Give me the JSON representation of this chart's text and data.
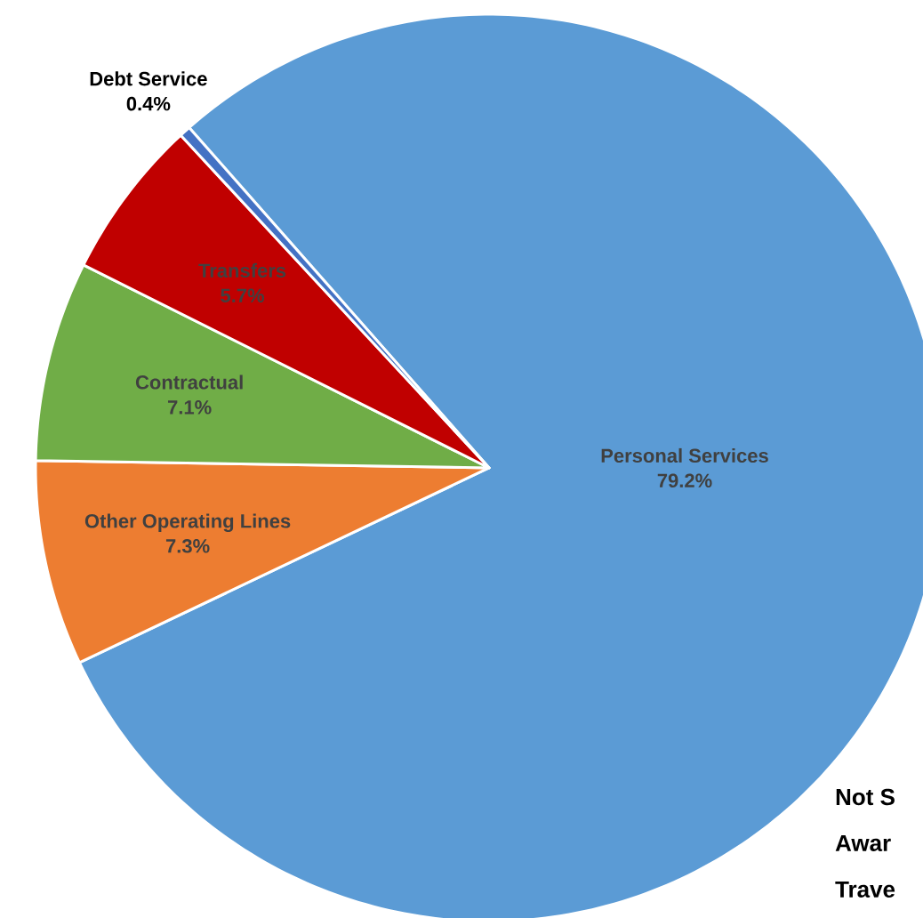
{
  "chart_data": {
    "type": "pie",
    "categories": [
      "Personal Services",
      "Other Operating Lines",
      "Contractual",
      "Transfers",
      "Debt Service"
    ],
    "values": [
      79.2,
      7.3,
      7.1,
      5.7,
      0.4
    ],
    "colors": [
      "#5b9bd5",
      "#ed7d31",
      "#70ad47",
      "#c00000",
      "#4472c4"
    ],
    "value_labels": [
      "79.2%",
      "7.3%",
      "7.1%",
      "5.7%",
      "0.4%"
    ],
    "annotations": [
      "Not S",
      "Awar",
      "Trave"
    ]
  }
}
